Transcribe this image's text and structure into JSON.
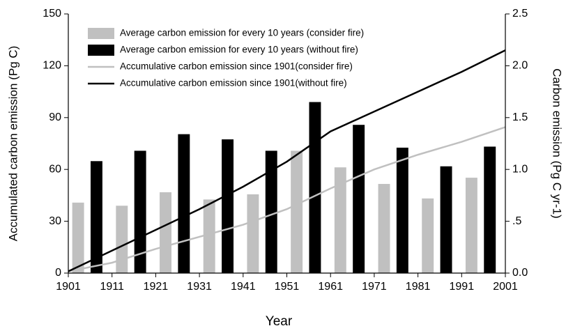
{
  "chart_data": {
    "type": "combo",
    "xlabel": "Year",
    "ylabel": "Accumulated carbon emission (Pg C)",
    "y2label": "Carbon emission (Pg C yr-1)",
    "xlim": [
      1901,
      2001
    ],
    "xticks": [
      1901,
      1911,
      1921,
      1931,
      1941,
      1951,
      1961,
      1971,
      1981,
      1991,
      2001
    ],
    "ylim": [
      0,
      150
    ],
    "yticks": [
      0,
      30,
      60,
      90,
      120,
      150
    ],
    "y2lim": [
      0,
      2.5
    ],
    "y2ticks": [
      {
        "value": 0,
        "label": "0.0"
      },
      {
        "value": 0.5,
        "label": ".5"
      },
      {
        "value": 1,
        "label": "1.0"
      },
      {
        "value": 1.5,
        "label": "1.5"
      },
      {
        "value": 2,
        "label": "2.0"
      },
      {
        "value": 2.5,
        "label": "2.5"
      }
    ],
    "legend": "upper left",
    "series": [
      {
        "name": "Average carbon emission for every 10 years (consider fire)",
        "type": "bar",
        "axis": "y2",
        "color": "#c0c0c0",
        "x": [
          1901,
          1911,
          1921,
          1931,
          1941,
          1951,
          1961,
          1971,
          1981,
          1991
        ],
        "values": [
          0.68,
          0.65,
          0.78,
          0.71,
          0.76,
          1.18,
          1.02,
          0.86,
          0.72,
          0.92
        ]
      },
      {
        "name": "Average carbon emission for every 10 years (without fire)",
        "type": "bar",
        "axis": "y2",
        "color": "#000000",
        "x": [
          1901,
          1911,
          1921,
          1931,
          1941,
          1951,
          1961,
          1971,
          1981,
          1991
        ],
        "values": [
          1.08,
          1.18,
          1.34,
          1.29,
          1.18,
          1.65,
          1.43,
          1.21,
          1.03,
          1.22
        ]
      },
      {
        "name": "Accumulative carbon emission since 1901(consider fire)",
        "type": "line",
        "color": "#c0c0c0",
        "x": [
          1901,
          1911,
          1921,
          1931,
          1941,
          1951,
          1961,
          1971,
          1981,
          1991,
          2001
        ],
        "values": [
          1,
          6,
          14,
          21,
          28,
          37,
          49,
          60,
          68.5,
          76,
          84.5
        ]
      },
      {
        "name": "Accumulative carbon emission since 1901(without fire)",
        "type": "line",
        "color": "#000000",
        "x": [
          1901,
          1911,
          1921,
          1931,
          1941,
          1951,
          1961,
          1971,
          1981,
          1991,
          2001
        ],
        "values": [
          1,
          13,
          25,
          37,
          50,
          64.5,
          82,
          93.5,
          105,
          116.5,
          129
        ]
      }
    ]
  }
}
